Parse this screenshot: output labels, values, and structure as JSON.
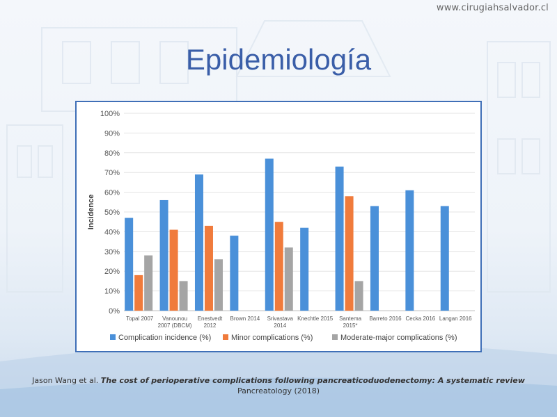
{
  "site_url": "www.cirugiahsalvador.cl",
  "title": "Epidemiología",
  "citation": {
    "authors": "Jason Wang et al. ",
    "article_title": "The cost of perioperative complications following pancreaticoduodenectomy: A systematic review",
    "journal": "Pancreatology (2018)"
  },
  "chart_data": {
    "type": "bar",
    "ylabel": "Incidence",
    "ylim": [
      0,
      100
    ],
    "yticks": [
      "0%",
      "10%",
      "20%",
      "30%",
      "40%",
      "50%",
      "60%",
      "70%",
      "80%",
      "90%",
      "100%"
    ],
    "categories": [
      [
        "Topal 2007"
      ],
      [
        "Vanounou",
        "2007 (DBCM)"
      ],
      [
        "Enestvedt",
        "2012"
      ],
      [
        "Brown 2014"
      ],
      [
        "Srivastava",
        "2014"
      ],
      [
        "Knechtle 2015"
      ],
      [
        "Santema",
        "2015*"
      ],
      [
        "Barreto 2016"
      ],
      [
        "Cecka 2016"
      ],
      [
        "Langan 2016"
      ]
    ],
    "series": [
      {
        "name": "Complication incidence (%)",
        "color": "#4a90d9",
        "values": [
          47,
          56,
          69,
          38,
          77,
          42,
          73,
          53,
          61,
          53
        ]
      },
      {
        "name": "Minor complications (%)",
        "color": "#f07b3c",
        "values": [
          18,
          41,
          43,
          null,
          45,
          null,
          58,
          null,
          null,
          null
        ]
      },
      {
        "name": "Moderate-major complications (%)",
        "color": "#a5a5a5",
        "values": [
          28,
          15,
          26,
          null,
          32,
          null,
          15,
          null,
          null,
          null
        ]
      }
    ],
    "legend_position": "bottom",
    "grid": true
  }
}
